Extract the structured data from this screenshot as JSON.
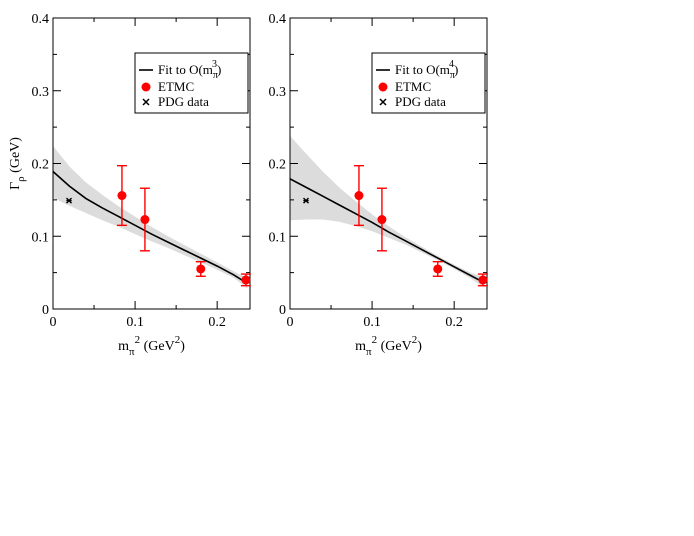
{
  "chart_data": [
    {
      "type": "scatter",
      "xlabel": "m_π^2 (GeV^2)",
      "ylabel": "Γ_ρ (GeV)",
      "xlim": [
        0,
        0.24
      ],
      "ylim": [
        0,
        0.4
      ],
      "x_ticks": [
        0,
        0.1,
        0.2
      ],
      "y_ticks": [
        0,
        0.1,
        0.2,
        0.3,
        0.4
      ],
      "x_tick_labels": [
        "0",
        "0.1",
        "0.2"
      ],
      "y_tick_labels": [
        "0",
        "0.1",
        "0.2",
        "0.3",
        "0.4"
      ],
      "show_y_label": true,
      "legend_position": "top-right",
      "legend": {
        "fit_label": "Fit to O(m_π^3)",
        "fit_base": "Fit to O(m",
        "fit_sub": "π",
        "fit_sup": "3",
        "fit_close": ")",
        "etmc_label": "ETMC",
        "pdg_label": "PDG data"
      },
      "fit_curve": {
        "x": [
          0,
          0.02,
          0.04,
          0.06,
          0.08,
          0.1,
          0.12,
          0.14,
          0.16,
          0.18,
          0.2,
          0.22,
          0.237
        ],
        "y": [
          0.189,
          0.169,
          0.152,
          0.139,
          0.127,
          0.115,
          0.103,
          0.092,
          0.081,
          0.07,
          0.059,
          0.047,
          0.035
        ]
      },
      "error_band": {
        "x": [
          0,
          0.02,
          0.04,
          0.06,
          0.08,
          0.1,
          0.12,
          0.14,
          0.16,
          0.18,
          0.2,
          0.22,
          0.237
        ],
        "upper": [
          0.224,
          0.196,
          0.174,
          0.157,
          0.141,
          0.127,
          0.113,
          0.1,
          0.088,
          0.076,
          0.064,
          0.052,
          0.042
        ],
        "lower": [
          0.153,
          0.142,
          0.132,
          0.122,
          0.113,
          0.103,
          0.093,
          0.084,
          0.074,
          0.064,
          0.054,
          0.043,
          0.028
        ]
      },
      "series": [
        {
          "name": "ETMC",
          "color": "#ff0000",
          "x": [
            0.084,
            0.112,
            0.18,
            0.235
          ],
          "y": [
            0.156,
            0.123,
            0.055,
            0.04
          ],
          "err_low": [
            0.041,
            0.043,
            0.01,
            0.008
          ],
          "err_high": [
            0.041,
            0.043,
            0.01,
            0.008
          ]
        },
        {
          "name": "PDG data",
          "color": "#000000",
          "x": [
            0.0195
          ],
          "y": [
            0.149
          ],
          "xerr": [
            0.002
          ]
        }
      ]
    },
    {
      "type": "scatter",
      "xlabel": "m_π^2 (GeV^2)",
      "ylabel": "",
      "xlim": [
        0,
        0.24
      ],
      "ylim": [
        0,
        0.4
      ],
      "x_ticks": [
        0,
        0.1,
        0.2
      ],
      "y_ticks": [
        0,
        0.1,
        0.2,
        0.3,
        0.4
      ],
      "x_tick_labels": [
        "0",
        "0.1",
        "0.2"
      ],
      "y_tick_labels": [
        "0",
        "0.1",
        "0.2",
        "0.3",
        "0.4"
      ],
      "show_y_label": false,
      "legend_position": "top-right",
      "legend": {
        "fit_label": "Fit to O(m_π^4)",
        "fit_base": "Fit to O(m",
        "fit_sub": "π",
        "fit_sup": "4",
        "fit_close": ")",
        "etmc_label": "ETMC",
        "pdg_label": "PDG data"
      },
      "fit_curve": {
        "x": [
          0,
          0.02,
          0.04,
          0.06,
          0.08,
          0.1,
          0.12,
          0.14,
          0.16,
          0.18,
          0.2,
          0.22,
          0.237
        ],
        "y": [
          0.179,
          0.167,
          0.155,
          0.143,
          0.131,
          0.119,
          0.106,
          0.094,
          0.082,
          0.07,
          0.058,
          0.046,
          0.036
        ]
      },
      "error_band": {
        "x": [
          0,
          0.02,
          0.04,
          0.06,
          0.08,
          0.1,
          0.12,
          0.14,
          0.16,
          0.18,
          0.2,
          0.22,
          0.237
        ],
        "upper": [
          0.238,
          0.213,
          0.189,
          0.167,
          0.148,
          0.13,
          0.114,
          0.099,
          0.086,
          0.073,
          0.061,
          0.05,
          0.043
        ],
        "lower": [
          0.122,
          0.123,
          0.123,
          0.12,
          0.114,
          0.107,
          0.098,
          0.089,
          0.078,
          0.067,
          0.055,
          0.042,
          0.029
        ]
      },
      "series": [
        {
          "name": "ETMC",
          "color": "#ff0000",
          "x": [
            0.084,
            0.112,
            0.18,
            0.235
          ],
          "y": [
            0.156,
            0.123,
            0.055,
            0.04
          ],
          "err_low": [
            0.041,
            0.043,
            0.01,
            0.008
          ],
          "err_high": [
            0.041,
            0.043,
            0.01,
            0.008
          ]
        },
        {
          "name": "PDG data",
          "color": "#000000",
          "x": [
            0.0195
          ],
          "y": [
            0.149
          ],
          "xerr": [
            0.002
          ]
        }
      ]
    }
  ],
  "colors": {
    "band": "#dcdcdc",
    "fit_line": "#000000",
    "etmc": "#ff0000",
    "pdg": "#000000",
    "axes": "#000000"
  }
}
